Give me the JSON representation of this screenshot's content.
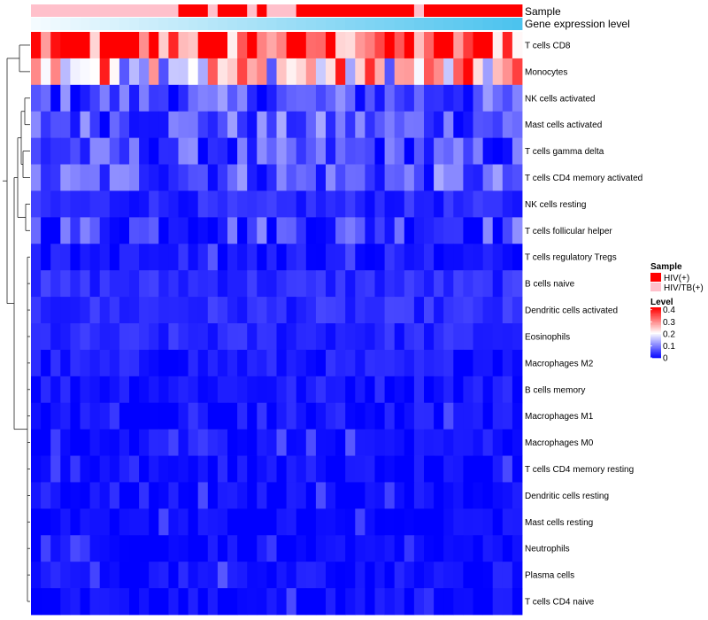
{
  "chart_data": {
    "type": "heatmap",
    "title": "",
    "xlabel": "",
    "ylabel": "",
    "n_samples": 50,
    "rows": [
      "T cells CD8",
      "Monocytes",
      "NK cells activated",
      "Mast cells activated",
      "T cells gamma delta",
      "T cells CD4 memory activated",
      "NK cells resting",
      "T cells follicular helper",
      "T cells regulatory  Tregs",
      "B cells naive",
      "Dendritic cells activated",
      "Eosinophils",
      "Macrophages M2",
      "B cells memory",
      "Macrophages M1",
      "Macrophages M0",
      "T cells CD4 memory resting",
      "Dendritic cells resting",
      "Mast cells resting",
      "Neutrophils",
      "Plasma cells",
      "T cells CD4 naive"
    ],
    "row_base_levels": [
      0.36,
      0.24,
      0.06,
      0.07,
      0.05,
      0.07,
      0.03,
      0.055,
      0.015,
      0.035,
      0.035,
      0.03,
      0.02,
      0.02,
      0.015,
      0.015,
      0.006,
      0.006,
      0.004,
      0.003,
      0.012,
      0.004
    ],
    "sample_annotation": {
      "title": "Sample",
      "values": [
        "HIV/TB(+)",
        "HIV/TB(+)",
        "HIV/TB(+)",
        "HIV/TB(+)",
        "HIV/TB(+)",
        "HIV/TB(+)",
        "HIV/TB(+)",
        "HIV/TB(+)",
        "HIV/TB(+)",
        "HIV/TB(+)",
        "HIV/TB(+)",
        "HIV/TB(+)",
        "HIV/TB(+)",
        "HIV/TB(+)",
        "HIV/TB(+)",
        "HIV(+)",
        "HIV(+)",
        "HIV(+)",
        "HIV/TB(+)",
        "HIV(+)",
        "HIV(+)",
        "HIV(+)",
        "HIV/TB(+)",
        "HIV(+)",
        "HIV/TB(+)",
        "HIV/TB(+)",
        "HIV/TB(+)",
        "HIV(+)",
        "HIV(+)",
        "HIV(+)",
        "HIV(+)",
        "HIV(+)",
        "HIV(+)",
        "HIV(+)",
        "HIV(+)",
        "HIV(+)",
        "HIV(+)",
        "HIV(+)",
        "HIV(+)",
        "HIV/TB(+)",
        "HIV(+)",
        "HIV(+)",
        "HIV(+)",
        "HIV(+)",
        "HIV(+)",
        "HIV(+)",
        "HIV(+)",
        "HIV(+)",
        "HIV(+)",
        "HIV(+)"
      ]
    },
    "gene_expression_annotation": {
      "title": "Gene expression level",
      "range": [
        0,
        1
      ]
    },
    "legend": {
      "sample_title": "Sample",
      "sample_entries": [
        {
          "label": "HIV(+)",
          "color": "#ff0000"
        },
        {
          "label": "HIV/TB(+)",
          "color": "#ffc0cb"
        }
      ],
      "level_title": "Level",
      "level_ticks": [
        "0.4",
        "0.3",
        "0.2",
        "0.1",
        "0"
      ],
      "level_tick_values": [
        0.4,
        0.3,
        0.2,
        0.1,
        0
      ],
      "level_max": 0.42,
      "placement": "right"
    },
    "colors": {
      "low": "#0000ff",
      "mid": "#ffffff",
      "high": "#ff0000",
      "hiv": "#ff0000",
      "hivtb": "#ffc0cb",
      "gene_low": "#f4fbff",
      "gene_high": "#4cc3ee"
    },
    "colorscale_range": [
      0,
      0.42
    ],
    "row_dendrogram": true
  }
}
